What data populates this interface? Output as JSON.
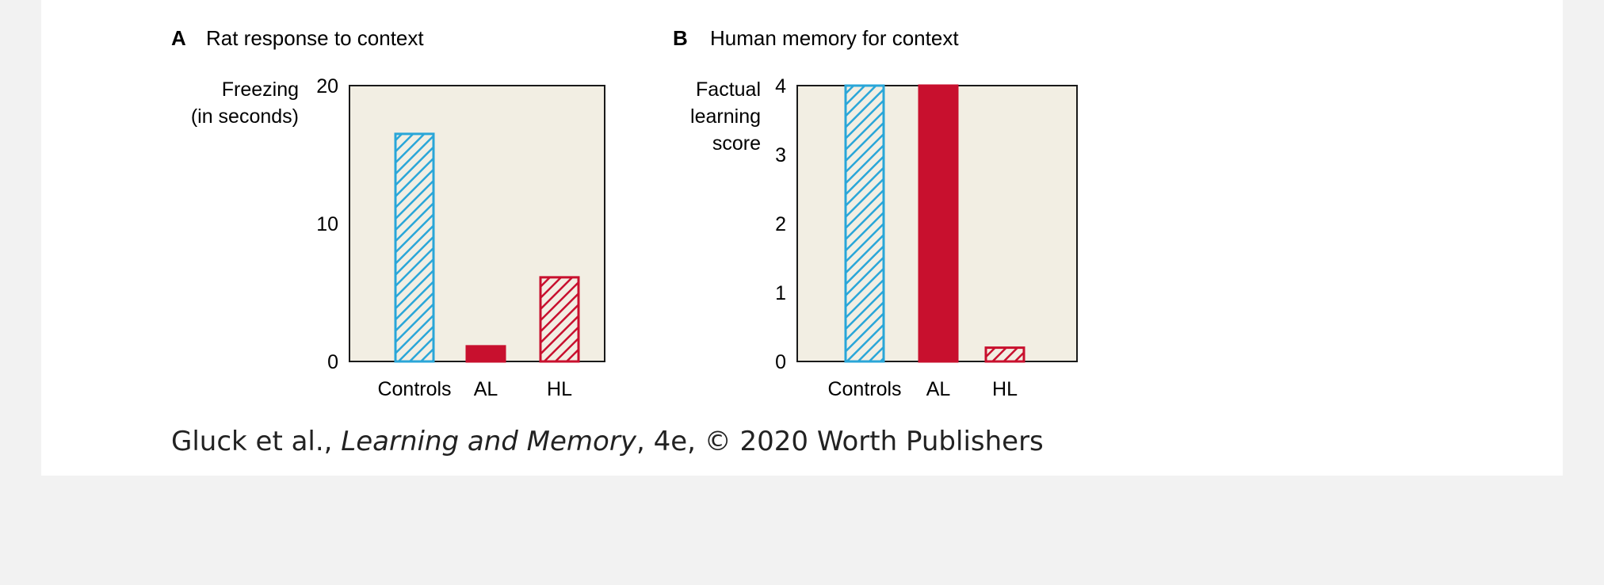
{
  "colors": {
    "plot_background": "#f2eee3",
    "controls": "#2aa6d8",
    "lesion": "#c8102e",
    "axis": "#1a1a1a"
  },
  "chart_data": [
    {
      "type": "bar",
      "panel_letter": "A",
      "title": "Rat response to context",
      "ylabel_lines": [
        "Freezing",
        "(in seconds)"
      ],
      "categories": [
        "Controls",
        "AL",
        "HL"
      ],
      "values": [
        16.5,
        1.1,
        6.1
      ],
      "fill_styles": [
        "hatch-blue",
        "solid-red",
        "hatch-red"
      ],
      "ylim": [
        0,
        20
      ],
      "yticks": [
        0,
        10,
        20
      ],
      "xlabel": "",
      "grid": false,
      "legend": "none"
    },
    {
      "type": "bar",
      "panel_letter": "B",
      "title": "Human memory for context",
      "ylabel_lines": [
        "Factual",
        "learning",
        "score"
      ],
      "categories": [
        "Controls",
        "AL",
        "HL"
      ],
      "values": [
        4.0,
        4.0,
        0.2
      ],
      "fill_styles": [
        "hatch-blue",
        "solid-red",
        "hatch-red"
      ],
      "ylim": [
        0,
        4
      ],
      "yticks": [
        0,
        1,
        2,
        3,
        4
      ],
      "xlabel": "",
      "grid": false,
      "legend": "none"
    }
  ],
  "caption": {
    "authors": "Gluck et al., ",
    "book": "Learning and Memory",
    "rest": ", 4e, © 2020 Worth Publishers"
  }
}
